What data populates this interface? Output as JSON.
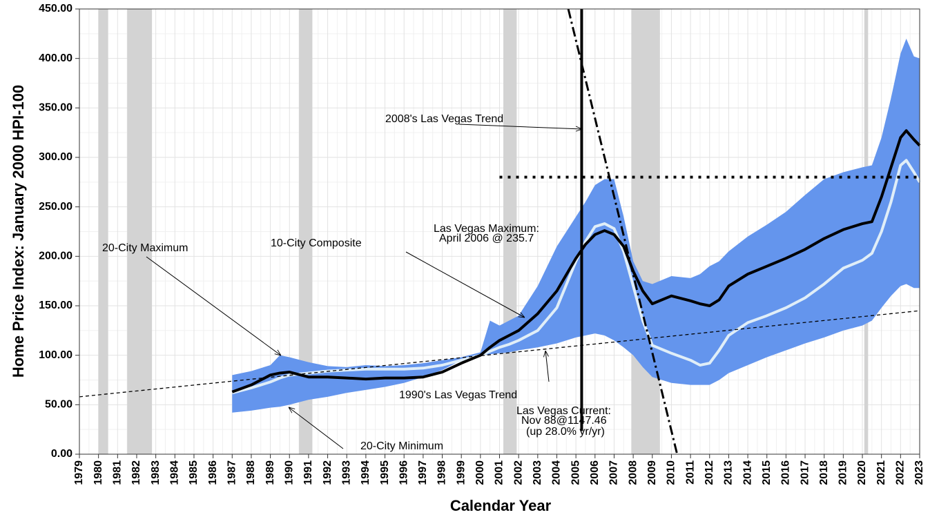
{
  "chart_data": {
    "type": "line",
    "x_label": "Calendar Year",
    "y_label": "Home Price Index: January 2000 HPI-100",
    "xlim": [
      1979,
      2023
    ],
    "ylim": [
      0,
      450
    ],
    "xticks": [
      1979,
      1980,
      1981,
      1982,
      1983,
      1984,
      1985,
      1986,
      1987,
      1988,
      1989,
      1990,
      1991,
      1992,
      1993,
      1994,
      1995,
      1996,
      1997,
      1998,
      1999,
      2000,
      2001,
      2002,
      2003,
      2004,
      2005,
      2006,
      2007,
      2008,
      2009,
      2010,
      2011,
      2012,
      2013,
      2014,
      2015,
      2016,
      2017,
      2018,
      2019,
      2020,
      2021,
      2022,
      2023
    ],
    "yticks": [
      {
        "value": 0,
        "label": "0.00"
      },
      {
        "value": 50,
        "label": "50.00"
      },
      {
        "value": 100,
        "label": "100.00"
      },
      {
        "value": 150,
        "label": "150.00"
      },
      {
        "value": 200,
        "label": "200.00"
      },
      {
        "value": 250,
        "label": "250.00"
      },
      {
        "value": 300,
        "label": "300.00"
      },
      {
        "value": 350,
        "label": "350.00"
      },
      {
        "value": 400,
        "label": "400.00"
      },
      {
        "value": 450,
        "label": "450.00"
      }
    ],
    "grid": true,
    "recessions": [
      [
        1980.0,
        1980.5
      ],
      [
        1981.5,
        1982.8
      ],
      [
        1990.5,
        1991.2
      ],
      [
        2001.2,
        2001.9
      ],
      [
        2007.9,
        2009.4
      ],
      [
        2020.1,
        2020.3
      ]
    ],
    "recession_color": "#d3d3d3",
    "x": [
      1987,
      1988,
      1989,
      1989.5,
      1990,
      1991,
      1992,
      1993,
      1994,
      1995,
      1996,
      1997,
      1998,
      1999,
      2000,
      2000.5,
      2001,
      2001.5,
      2002,
      2003,
      2004,
      2005,
      2005.5,
      2006,
      2006.5,
      2007,
      2007.5,
      2008,
      2008.5,
      2009,
      2010,
      2011,
      2011.5,
      2012,
      2012.5,
      2013,
      2014,
      2015,
      2016,
      2017,
      2018,
      2019,
      2020,
      2020.5,
      2021,
      2021.5,
      2022,
      2022.3,
      2022.7,
      2023
    ],
    "band": {
      "color": "#6495ed",
      "max": [
        80,
        84,
        90,
        100,
        98,
        93,
        89,
        88,
        90,
        89,
        90,
        92,
        95,
        98,
        103,
        135,
        130,
        135,
        140,
        170,
        210,
        240,
        255,
        272,
        278,
        278,
        240,
        195,
        175,
        172,
        180,
        178,
        182,
        190,
        195,
        205,
        220,
        232,
        245,
        262,
        278,
        285,
        290,
        292,
        320,
        360,
        405,
        420,
        402,
        400
      ],
      "min": [
        42,
        44,
        47,
        48,
        50,
        55,
        58,
        62,
        65,
        68,
        72,
        78,
        85,
        95,
        100,
        101,
        102,
        103,
        105,
        108,
        112,
        118,
        120,
        122,
        120,
        115,
        108,
        100,
        88,
        78,
        72,
        70,
        70,
        70,
        75,
        82,
        90,
        98,
        105,
        112,
        118,
        125,
        130,
        135,
        148,
        160,
        170,
        172,
        168,
        168
      ]
    },
    "lines": [
      {
        "color": "#e0eef8",
        "values": [
          62,
          67,
          73,
          77,
          80,
          82,
          84,
          85,
          86,
          86,
          86,
          87,
          90,
          95,
          100,
          104,
          108,
          111,
          115,
          125,
          148,
          195,
          215,
          230,
          233,
          228,
          205,
          170,
          135,
          110,
          102,
          95,
          90,
          92,
          105,
          120,
          133,
          140,
          148,
          158,
          172,
          188,
          196,
          203,
          225,
          255,
          292,
          297,
          285,
          275
        ]
      },
      {
        "color": "#000000",
        "values": [
          63,
          70,
          80,
          82,
          83,
          78,
          78,
          77,
          76,
          77,
          77,
          78,
          83,
          92,
          100,
          108,
          115,
          120,
          125,
          142,
          165,
          198,
          212,
          222,
          226,
          222,
          210,
          185,
          165,
          152,
          160,
          155,
          152,
          150,
          156,
          170,
          182,
          190,
          198,
          207,
          218,
          227,
          233,
          235,
          260,
          290,
          320,
          327,
          318,
          312
        ]
      }
    ],
    "trend_1990": {
      "x": [
        1979,
        2023
      ],
      "values": [
        58,
        145
      ]
    },
    "trend_2008": {
      "x": [
        2004.6,
        2010.3
      ],
      "values": [
        450,
        0
      ]
    },
    "max_level": {
      "x": [
        2001,
        2023
      ],
      "value": 280
    },
    "marker_year": 2005.3,
    "annotations": [
      "2008's Las Vegas Trend",
      "20-City Maximum",
      "10-City Composite",
      "Las Vegas Maximum:",
      "April 2006 @ 235.7",
      "1990's Las Vegas Trend",
      "Las Vegas Current:",
      "Nov 88@1147.46",
      "(up 28.0% yr/yr)",
      "20-City Minimum"
    ]
  }
}
